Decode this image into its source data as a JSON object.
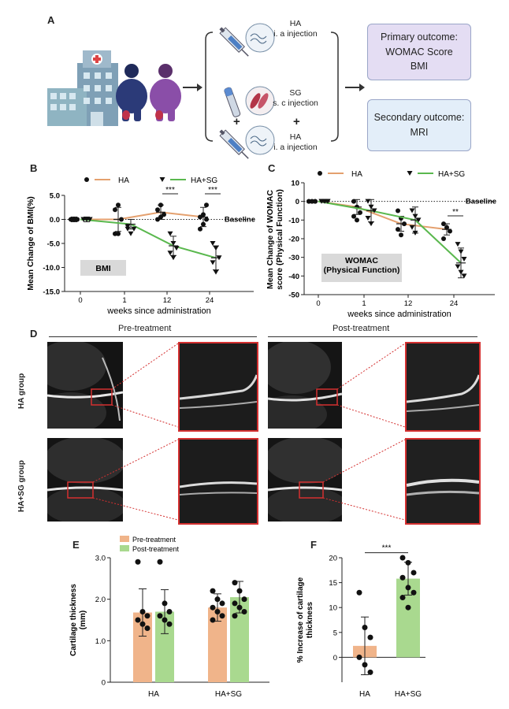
{
  "panel_labels": {
    "a": "A",
    "b": "B",
    "c": "C",
    "d": "D",
    "e": "E",
    "f": "F"
  },
  "panelA": {
    "top_injection": [
      "HA",
      "i. a injection"
    ],
    "mid_injection": [
      "SG",
      "s. c injection"
    ],
    "bot_injection": [
      "HA",
      "i. a injection"
    ],
    "plus": "+",
    "primary": [
      "Primary outcome:",
      "WOMAC Score",
      "BMI"
    ],
    "secondary": [
      "Secondary outcome:",
      "MRI"
    ],
    "colors": {
      "primary_box": "#e4ddf3",
      "secondary_box": "#e3eef9",
      "box_border": "#9aa6c8"
    }
  },
  "panelB": {
    "legend": [
      "HA",
      "HA+SG"
    ],
    "ylabel": "Mean Change of BMI(%)",
    "xlabel": "weeks since administration",
    "box_label": "BMI",
    "baseline": "Baseline",
    "sig": [
      "***",
      "***"
    ]
  },
  "panelC": {
    "legend": [
      "HA",
      "HA+SG"
    ],
    "ylabel": [
      "Mean Change of WOMAC",
      "score (Physical Function)"
    ],
    "xlabel": "weeks since administration",
    "box_label": [
      "WOMAC",
      "(Physical Function)"
    ],
    "baseline": "Baseline",
    "sig": [
      "**"
    ]
  },
  "panelD": {
    "pre": "Pre-treatment",
    "post": "Post-treatment",
    "row1": "HA group",
    "row2": "HA+SG group"
  },
  "panelE": {
    "legend": [
      "Pre-treatment",
      "Post-treatment"
    ],
    "ylabel": [
      "Cartilage thickness",
      "(mm)"
    ]
  },
  "panelF": {
    "ylabel": [
      "% Increase of cartilage",
      "thickness"
    ],
    "sig": [
      "***"
    ]
  },
  "colors": {
    "ha": "#e4a06e",
    "hasg": "#5ab84e",
    "pre_bar": "#f0b48a",
    "post_bar": "#a9d98f",
    "sig_line": "#222222"
  },
  "chart_data": [
    {
      "type": "line",
      "title": "",
      "xlabel": "weeks since administration",
      "ylabel": "Mean Change of BMI(%)",
      "categories": [
        "0",
        "1",
        "12",
        "24"
      ],
      "ylim": [
        -15,
        5
      ],
      "yticks": [
        5.0,
        0.0,
        -5.0,
        -10.0,
        -15.0
      ],
      "series": [
        {
          "name": "HA",
          "values": [
            0,
            0,
            1.5,
            0.5
          ],
          "err": [
            0.5,
            2.5,
            1.5,
            2.0
          ],
          "points": [
            [
              0,
              0,
              0,
              0,
              0,
              0
            ],
            [
              -3,
              -3,
              0,
              2,
              3
            ],
            [
              0,
              0.5,
              1,
              2,
              3
            ],
            [
              -2,
              -1,
              0,
              0.5,
              1,
              3
            ]
          ]
        },
        {
          "name": "HA+SG",
          "values": [
            0,
            -1,
            -5.5,
            -8
          ],
          "err": [
            0.5,
            1.0,
            2.0,
            2.5
          ],
          "points": [
            [
              0,
              0,
              0,
              0,
              0,
              0
            ],
            [
              -2,
              -3,
              -2,
              -1.5
            ],
            [
              -3,
              -5,
              -6,
              -7,
              -8
            ],
            [
              -5,
              -6,
              -8,
              -9,
              -11
            ]
          ]
        }
      ],
      "annotations": [
        "***",
        "***",
        "Baseline",
        "BMI"
      ]
    },
    {
      "type": "line",
      "title": "",
      "xlabel": "weeks since administration",
      "ylabel": "Mean Change of WOMAC score (Physical Function)",
      "categories": [
        "0",
        "1",
        "12",
        "24"
      ],
      "ylim": [
        -50,
        10
      ],
      "yticks": [
        10,
        0,
        -10,
        -20,
        -30,
        -40,
        -50
      ],
      "series": [
        {
          "name": "HA",
          "values": [
            0,
            -3,
            -12,
            -15
          ],
          "err": [
            0.5,
            4,
            4,
            3
          ],
          "points": [
            [
              0,
              0,
              0,
              0,
              0,
              0
            ],
            [
              0,
              -3,
              -6,
              -8,
              -10
            ],
            [
              -5,
              -9,
              -12,
              -15,
              -18
            ],
            [
              -12,
              -14,
              -16,
              -20
            ]
          ]
        },
        {
          "name": "HA+SG",
          "values": [
            0,
            -5,
            -10,
            -33
          ],
          "err": [
            0.5,
            6,
            7,
            8
          ],
          "points": [
            [
              0,
              0,
              0,
              0,
              0,
              0
            ],
            [
              0,
              -3,
              -5,
              -9,
              -12
            ],
            [
              -5,
              -8,
              -10,
              -14,
              -17
            ],
            [
              -23,
              -27,
              -31,
              -35,
              -38,
              -40
            ]
          ]
        }
      ],
      "annotations": [
        "**",
        "Baseline",
        "WOMAC (Physical Function)"
      ]
    },
    {
      "type": "bar",
      "xlabel": "",
      "ylabel": "Cartilage thickness (mm)",
      "categories": [
        "HA",
        "HA+SG"
      ],
      "ylim": [
        0,
        3.0
      ],
      "yticks": [
        0,
        1.0,
        2.0,
        3.0
      ],
      "series": [
        {
          "name": "Pre-treatment",
          "values": [
            1.68,
            1.8
          ],
          "err": [
            0.57,
            0.33
          ],
          "points": [
            [
              2.9,
              1.7,
              1.6,
              1.5,
              1.4,
              1.3
            ],
            [
              2.2,
              2.0,
              1.9,
              1.8,
              1.7,
              1.6,
              1.5
            ]
          ]
        },
        {
          "name": "Post-treatment",
          "values": [
            1.7,
            2.05
          ],
          "err": [
            0.53,
            0.38
          ],
          "points": [
            [
              2.9,
              1.9,
              1.7,
              1.6,
              1.5,
              1.4
            ],
            [
              2.4,
              2.2,
              2.0,
              1.9,
              1.8,
              1.7,
              1.6
            ]
          ]
        }
      ]
    },
    {
      "type": "bar",
      "xlabel": "",
      "ylabel": "% Increase of cartilage thickness",
      "categories": [
        "HA",
        "HA+SG"
      ],
      "ylim": [
        -5,
        20
      ],
      "yticks": [
        0,
        5,
        10,
        15,
        20
      ],
      "values": [
        2.3,
        15.8
      ],
      "err": [
        5.8,
        3.3
      ],
      "points": [
        [
          13,
          6,
          4,
          0,
          -1.5,
          -3
        ],
        [
          20,
          19,
          17,
          16,
          14,
          13,
          12,
          10
        ]
      ],
      "annotations": [
        "***"
      ]
    }
  ]
}
